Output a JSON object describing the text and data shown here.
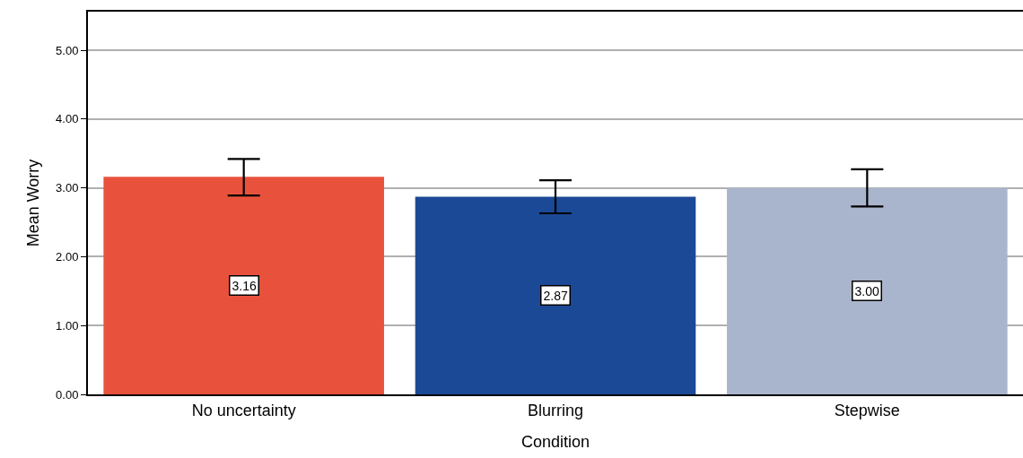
{
  "chart_data": {
    "type": "bar",
    "xlabel": "Condition",
    "ylabel": "Mean Worry",
    "categories": [
      "No uncertainty",
      "Blurring",
      "Stepwise"
    ],
    "values": [
      3.16,
      2.87,
      3.0
    ],
    "colors": [
      "#e8523c",
      "#1b4995",
      "#a9b5cc"
    ],
    "errors": [
      [
        2.89,
        3.42
      ],
      [
        2.63,
        3.11
      ],
      [
        2.73,
        3.27
      ]
    ],
    "ylim": [
      0,
      5.56
    ],
    "yticks": [
      {
        "value": 0,
        "label": "0.00"
      },
      {
        "value": 1,
        "label": "1.00"
      },
      {
        "value": 2,
        "label": "2.00"
      },
      {
        "value": 3,
        "label": "3.00"
      },
      {
        "value": 4,
        "label": "4.00"
      },
      {
        "value": 5,
        "label": "5.00"
      }
    ],
    "value_labels": [
      "3.16",
      "2.87",
      "3.00"
    ],
    "grid": "y"
  }
}
